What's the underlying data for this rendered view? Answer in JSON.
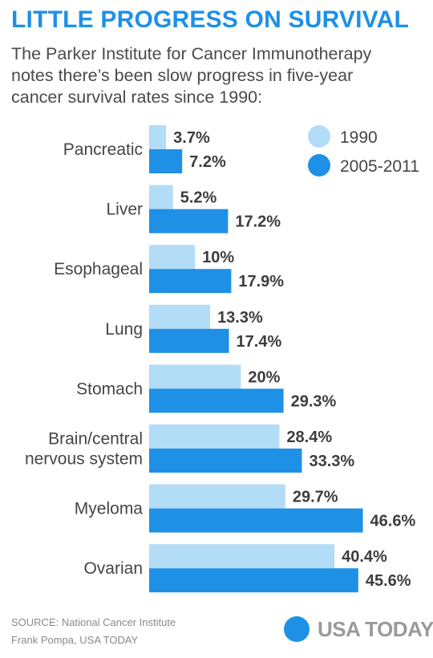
{
  "header": {
    "title": "LITTLE PROGRESS ON SURVIVAL",
    "subtitle_lines": [
      "The Parker Institute for Cancer Immunotherapy",
      "notes there’s been slow progress in five-year",
      "cancer survival rates since 1990:"
    ]
  },
  "footer": {
    "source_lines": [
      "SOURCE: National Cancer Institute",
      "Frank Pompa, USA TODAY"
    ],
    "brand": "USA TODAY"
  },
  "colors": {
    "series_1990": "#b3dcf7",
    "series_2005": "#1e90e6",
    "title": "#1e90e6"
  },
  "chart_data": {
    "type": "bar",
    "orientation": "horizontal",
    "categories": [
      [
        "Pancreatic"
      ],
      [
        "Liver"
      ],
      [
        "Esophageal"
      ],
      [
        "Lung"
      ],
      [
        "Stomach"
      ],
      [
        "Brain/central",
        "nervous system"
      ],
      [
        "Myeloma"
      ],
      [
        "Ovarian"
      ]
    ],
    "series": [
      {
        "name": "1990",
        "values": [
          3.7,
          5.2,
          10,
          13.3,
          20,
          28.4,
          29.7,
          40.4
        ],
        "labels": [
          "3.7%",
          "5.2%",
          "10%",
          "13.3%",
          "20%",
          "28.4%",
          "29.7%",
          "40.4%"
        ]
      },
      {
        "name": "2005-2011",
        "values": [
          7.2,
          17.2,
          17.9,
          17.4,
          29.3,
          33.3,
          46.6,
          45.6
        ],
        "labels": [
          "7.2%",
          "17.2%",
          "17.9%",
          "17.4%",
          "29.3%",
          "33.3%",
          "46.6%",
          "45.6%"
        ]
      }
    ],
    "legend_position": "top-right",
    "grid": false
  }
}
